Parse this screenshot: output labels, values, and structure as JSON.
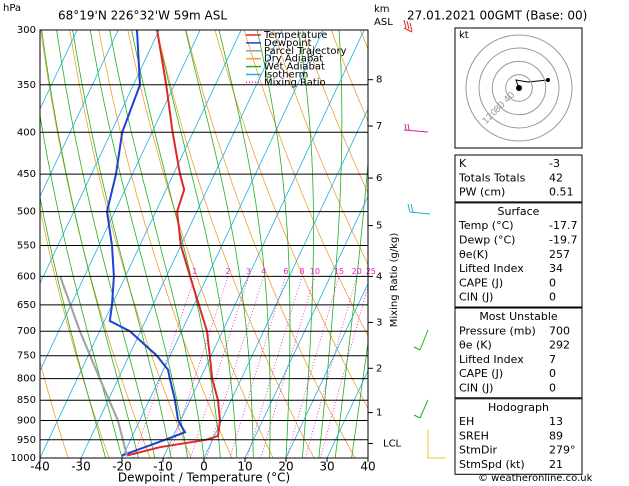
{
  "chart_data": {
    "type": "skewt",
    "location": "68°19'N 226°32'W 59m ASL",
    "datetime": "27.01.2021 00GMT (Base: 00)",
    "ylabel": "hPa",
    "xlabel": "Dewpoint / Temperature (°C)",
    "mixing_ratio_label": "Mixing Ratio (g/kg)",
    "xlim": [
      -40,
      40
    ],
    "xticks": [
      -40,
      -30,
      -20,
      -10,
      0,
      10,
      20,
      30,
      40
    ],
    "ylim": [
      1000,
      300
    ],
    "yticks": [
      300,
      350,
      400,
      450,
      500,
      550,
      600,
      650,
      700,
      750,
      800,
      850,
      900,
      950,
      1000
    ],
    "log_y": true,
    "series": [
      {
        "name": "Temperature",
        "color": "#e02828",
        "pressure": [
          993,
          970,
          950,
          940,
          900,
          850,
          800,
          750,
          700,
          650,
          600,
          550,
          500,
          470,
          450,
          400,
          350,
          300
        ],
        "values": [
          -19.1,
          -12,
          -1.6,
          0.9,
          -0.4,
          -3.2,
          -7.1,
          -10.3,
          -13.8,
          -18.8,
          -24.2,
          -30,
          -34.8,
          -35.6,
          -38.4,
          -45,
          -52,
          -60.5
        ]
      },
      {
        "name": "Dewpoint",
        "color": "#2040d0",
        "pressure": [
          993,
          950,
          930,
          900,
          850,
          800,
          780,
          750,
          700,
          680,
          650,
          600,
          550,
          500,
          450,
          400,
          350,
          300
        ],
        "values": [
          -20.3,
          -11.6,
          -7.6,
          -10.6,
          -13.7,
          -17.4,
          -18.9,
          -23.2,
          -32.6,
          -38.7,
          -40,
          -42.8,
          -46.8,
          -51.9,
          -54,
          -57.3,
          -58.4,
          -65.4
        ]
      },
      {
        "name": "Parcel Trajectory",
        "color": "#a0a0a0",
        "pressure": [
          993,
          900,
          800,
          700,
          600
        ],
        "values": [
          -19.1,
          -25.3,
          -34.5,
          -44.8,
          -55.9
        ]
      }
    ],
    "reference_lines": [
      {
        "name": "Dry Adiabat",
        "color": "#f0a030"
      },
      {
        "name": "Wet Adiabat",
        "color": "#20b020"
      },
      {
        "name": "Isotherm",
        "color": "#20b0e0"
      },
      {
        "name": "Mixing Ratio",
        "color": "#e020c0"
      }
    ],
    "mixing_ratios": [
      1,
      2,
      3,
      4,
      6,
      8,
      10,
      15,
      20,
      25
    ],
    "y2label": "km",
    "y2sublabel": "ASL",
    "y2ticks": [
      {
        "value": 1,
        "pressure": 880
      },
      {
        "value": 2,
        "pressure": 777
      },
      {
        "value": 3,
        "pressure": 683
      },
      {
        "value": 4,
        "pressure": 600
      },
      {
        "value": 5,
        "pressure": 520
      },
      {
        "value": 6,
        "pressure": 455
      },
      {
        "value": 7,
        "pressure": 393
      },
      {
        "value": 8,
        "pressure": 345
      }
    ],
    "lcl": {
      "label": "LCL",
      "pressure": 960
    }
  },
  "hodograph": {
    "unit": "kt",
    "rings": [
      40,
      80,
      120
    ]
  },
  "sections": [
    {
      "rows": [
        [
          "K",
          "-3"
        ],
        [
          "Totals Totals",
          "42"
        ],
        [
          "PW (cm)",
          "0.51"
        ]
      ]
    },
    {
      "title": "Surface",
      "rows": [
        [
          "Temp (°C)",
          "-17.7"
        ],
        [
          "Dewp (°C)",
          "-19.7"
        ],
        [
          "θe(K)",
          "257"
        ],
        [
          "Lifted Index",
          "34"
        ],
        [
          "CAPE (J)",
          "0"
        ],
        [
          "CIN (J)",
          "0"
        ]
      ]
    },
    {
      "title": "Most Unstable",
      "rows": [
        [
          "Pressure (mb)",
          "700"
        ],
        [
          "θe (K)",
          "292"
        ],
        [
          "Lifted Index",
          "7"
        ],
        [
          "CAPE (J)",
          "0"
        ],
        [
          "CIN (J)",
          "0"
        ]
      ]
    },
    {
      "title": "Hodograph",
      "rows": [
        [
          "EH",
          "13"
        ],
        [
          "SREH",
          "89"
        ],
        [
          "StmDir",
          "279°"
        ],
        [
          "StmSpd (kt)",
          "21"
        ]
      ]
    }
  ],
  "footer": "© weatheronline.co.uk"
}
